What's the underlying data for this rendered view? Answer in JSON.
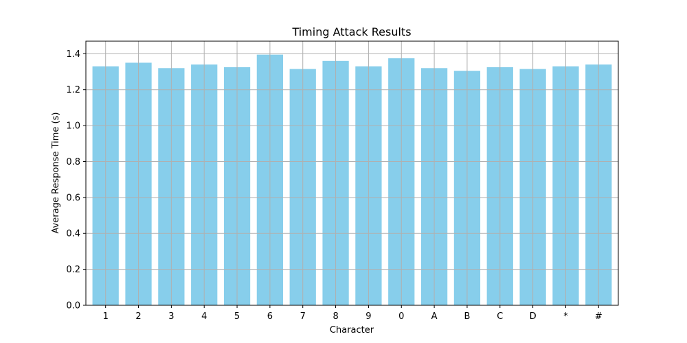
{
  "chart_data": {
    "type": "bar",
    "title": "Timing Attack Results",
    "xlabel": "Character",
    "ylabel": "Average Response Time (s)",
    "categories": [
      "1",
      "2",
      "3",
      "4",
      "5",
      "6",
      "7",
      "8",
      "9",
      "0",
      "A",
      "B",
      "C",
      "D",
      "*",
      "#"
    ],
    "values": [
      1.33,
      1.35,
      1.32,
      1.34,
      1.325,
      1.395,
      1.315,
      1.36,
      1.33,
      1.375,
      1.32,
      1.305,
      1.325,
      1.315,
      1.33,
      1.34
    ],
    "ylim": [
      0,
      1.47
    ],
    "yticks": [
      "0.0",
      "0.2",
      "0.4",
      "0.6",
      "0.8",
      "1.0",
      "1.2",
      "1.4"
    ],
    "bar_color": "#87ceeb",
    "grid": true,
    "grid_color": "#b0b0b0"
  }
}
